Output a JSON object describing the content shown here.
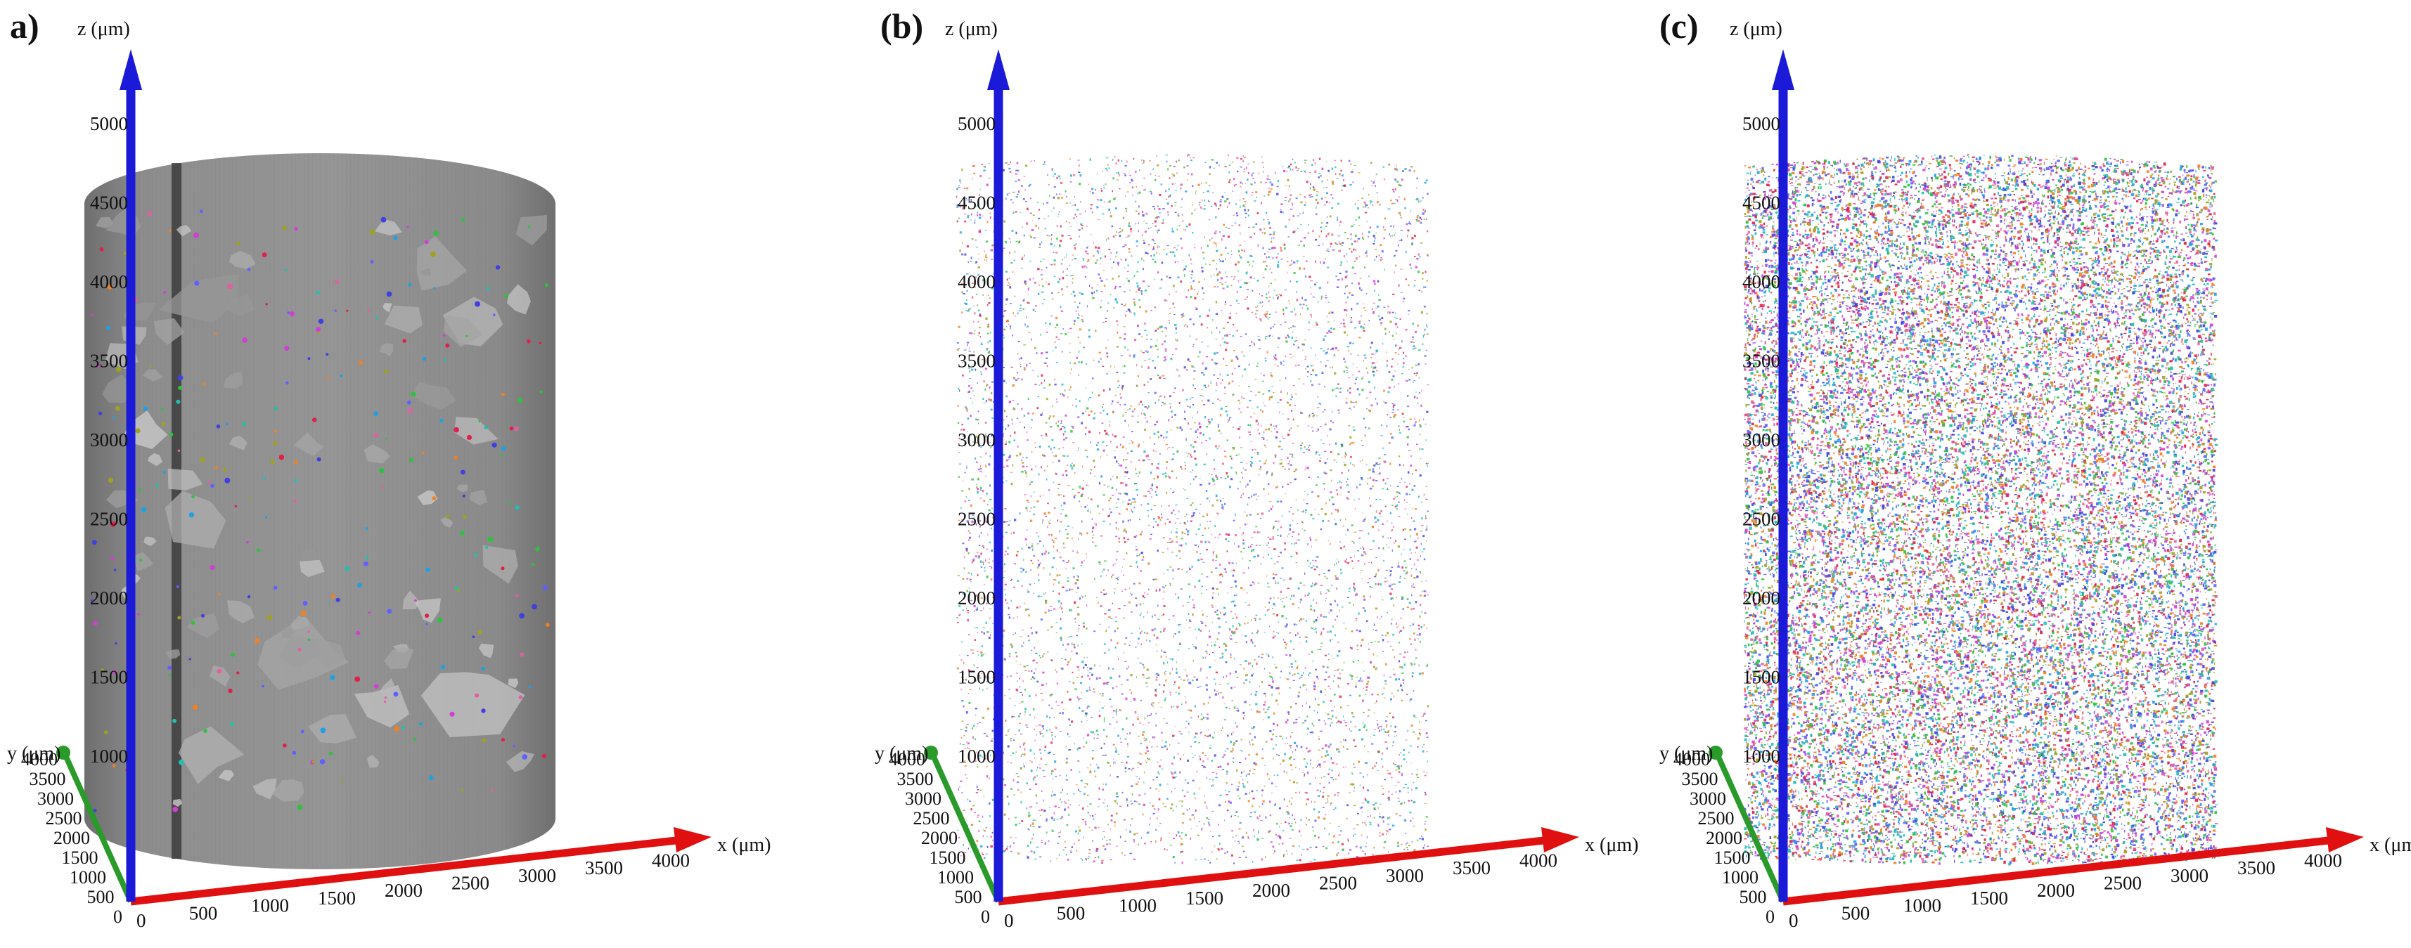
{
  "panels": [
    {
      "id": "a",
      "label": "a)",
      "view": "grayscale-volume",
      "axes": {
        "x_label": "x (μm)",
        "y_label": "y (μm)",
        "z_label": "z (μm)",
        "x_ticks": [
          "0",
          "500",
          "1000",
          "1500",
          "2000",
          "2500",
          "3000",
          "3500",
          "4000"
        ],
        "y_ticks": [
          "0",
          "500",
          "1000",
          "1500",
          "2000",
          "2500",
          "3000",
          "3500",
          "4000"
        ],
        "z_ticks": [
          "1000",
          "1500",
          "2000",
          "2500",
          "3000",
          "3500",
          "4000",
          "4500",
          "5000"
        ]
      }
    },
    {
      "id": "b",
      "label": "(b)",
      "view": "sparse-colored-points",
      "axes": {
        "x_label": "x (μm)",
        "y_label": "y (μm)",
        "z_label": "z (μm)",
        "x_ticks": [
          "0",
          "500",
          "1000",
          "1500",
          "2000",
          "2500",
          "3000",
          "3500",
          "4000"
        ],
        "y_ticks": [
          "0",
          "500",
          "1000",
          "1500",
          "2000",
          "2500",
          "3000",
          "3500",
          "4000"
        ],
        "z_ticks": [
          "1000",
          "1500",
          "2000",
          "2500",
          "3000",
          "3500",
          "4000",
          "4500",
          "5000"
        ]
      }
    },
    {
      "id": "c",
      "label": "(c)",
      "view": "dense-colored-points",
      "axes": {
        "x_label": "x (μm",
        "y_label": "y (μm)",
        "z_label": "z (μm)",
        "x_ticks": [
          "0",
          "500",
          "1000",
          "1500",
          "2000",
          "2500",
          "3000",
          "3500",
          "4000"
        ],
        "y_ticks": [
          "0",
          "500",
          "1000",
          "1500",
          "2000",
          "2500",
          "3000",
          "3500",
          "4000"
        ],
        "z_ticks": [
          "1000",
          "1500",
          "2000",
          "2500",
          "3000",
          "3500",
          "4000",
          "4500",
          "5000"
        ]
      }
    }
  ],
  "colors": {
    "x_axis": "#e01010",
    "y_axis": "#2a9a2a",
    "z_axis": "#1a1ad8",
    "sample_gray": "#8a8a8a",
    "particle_palette": [
      "#e0204a",
      "#20a0e0",
      "#30c040",
      "#d040d0",
      "#f08020",
      "#4040e0",
      "#20c0b0",
      "#a0a020",
      "#e060a0",
      "#6060ff"
    ]
  }
}
